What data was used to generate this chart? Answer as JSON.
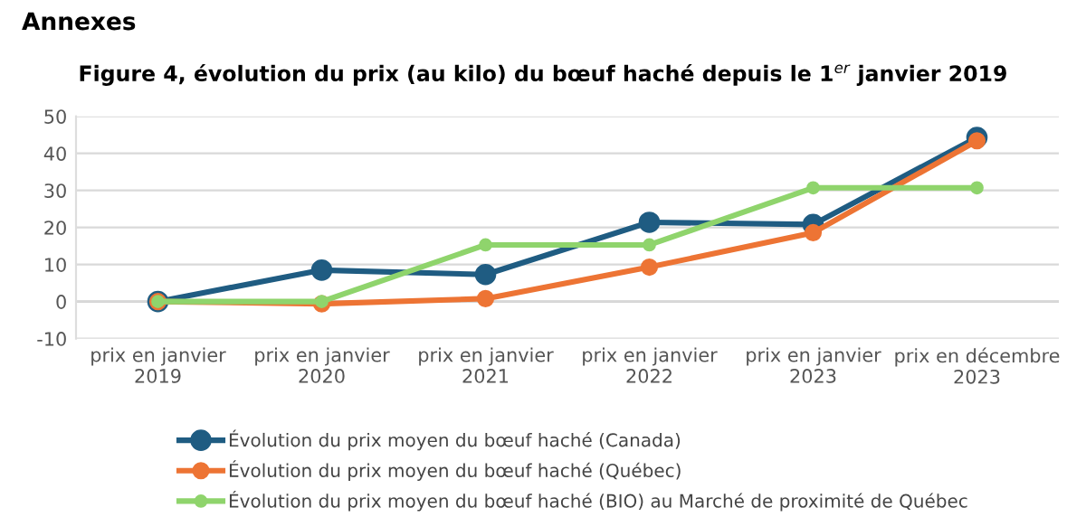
{
  "chart_data": {
    "type": "line",
    "title": "Annexes",
    "subtitle": "Figure 4, évolution du prix (au kilo) du bœuf haché depuis le 1$^{er}$ janvier 2019",
    "categories": [
      "prix en janvier\n2019",
      "prix en janvier\n2020",
      "prix en janvier\n2021",
      "prix en janvier\n2022",
      "prix en janvier\n2023",
      "prix en décembre\n2023"
    ],
    "series": [
      {
        "name": "Évolution du prix moyen du bœuf haché (Canada)",
        "color": "#1f5c82",
        "values": [
          0,
          8.5,
          7.3,
          21.4,
          20.8,
          44.3
        ]
      },
      {
        "name": "Évolution du prix moyen du bœuf haché (Québec)",
        "color": "#ed7434",
        "values": [
          0,
          -0.6,
          0.8,
          9.3,
          18.6,
          43.4
        ]
      },
      {
        "name": "Évolution du prix moyen du bœuf haché (BIO) au Marché de proximité de Québec",
        "color": "#8fd46c",
        "values": [
          0,
          0,
          15.3,
          15.3,
          30.7,
          30.7
        ]
      }
    ],
    "ylim": [
      -10,
      50
    ],
    "yticks": [
      -10,
      0,
      10,
      20,
      30,
      40,
      50
    ],
    "grid": "y",
    "legend": "bottom",
    "marker": "circle",
    "line_style": "solid"
  }
}
